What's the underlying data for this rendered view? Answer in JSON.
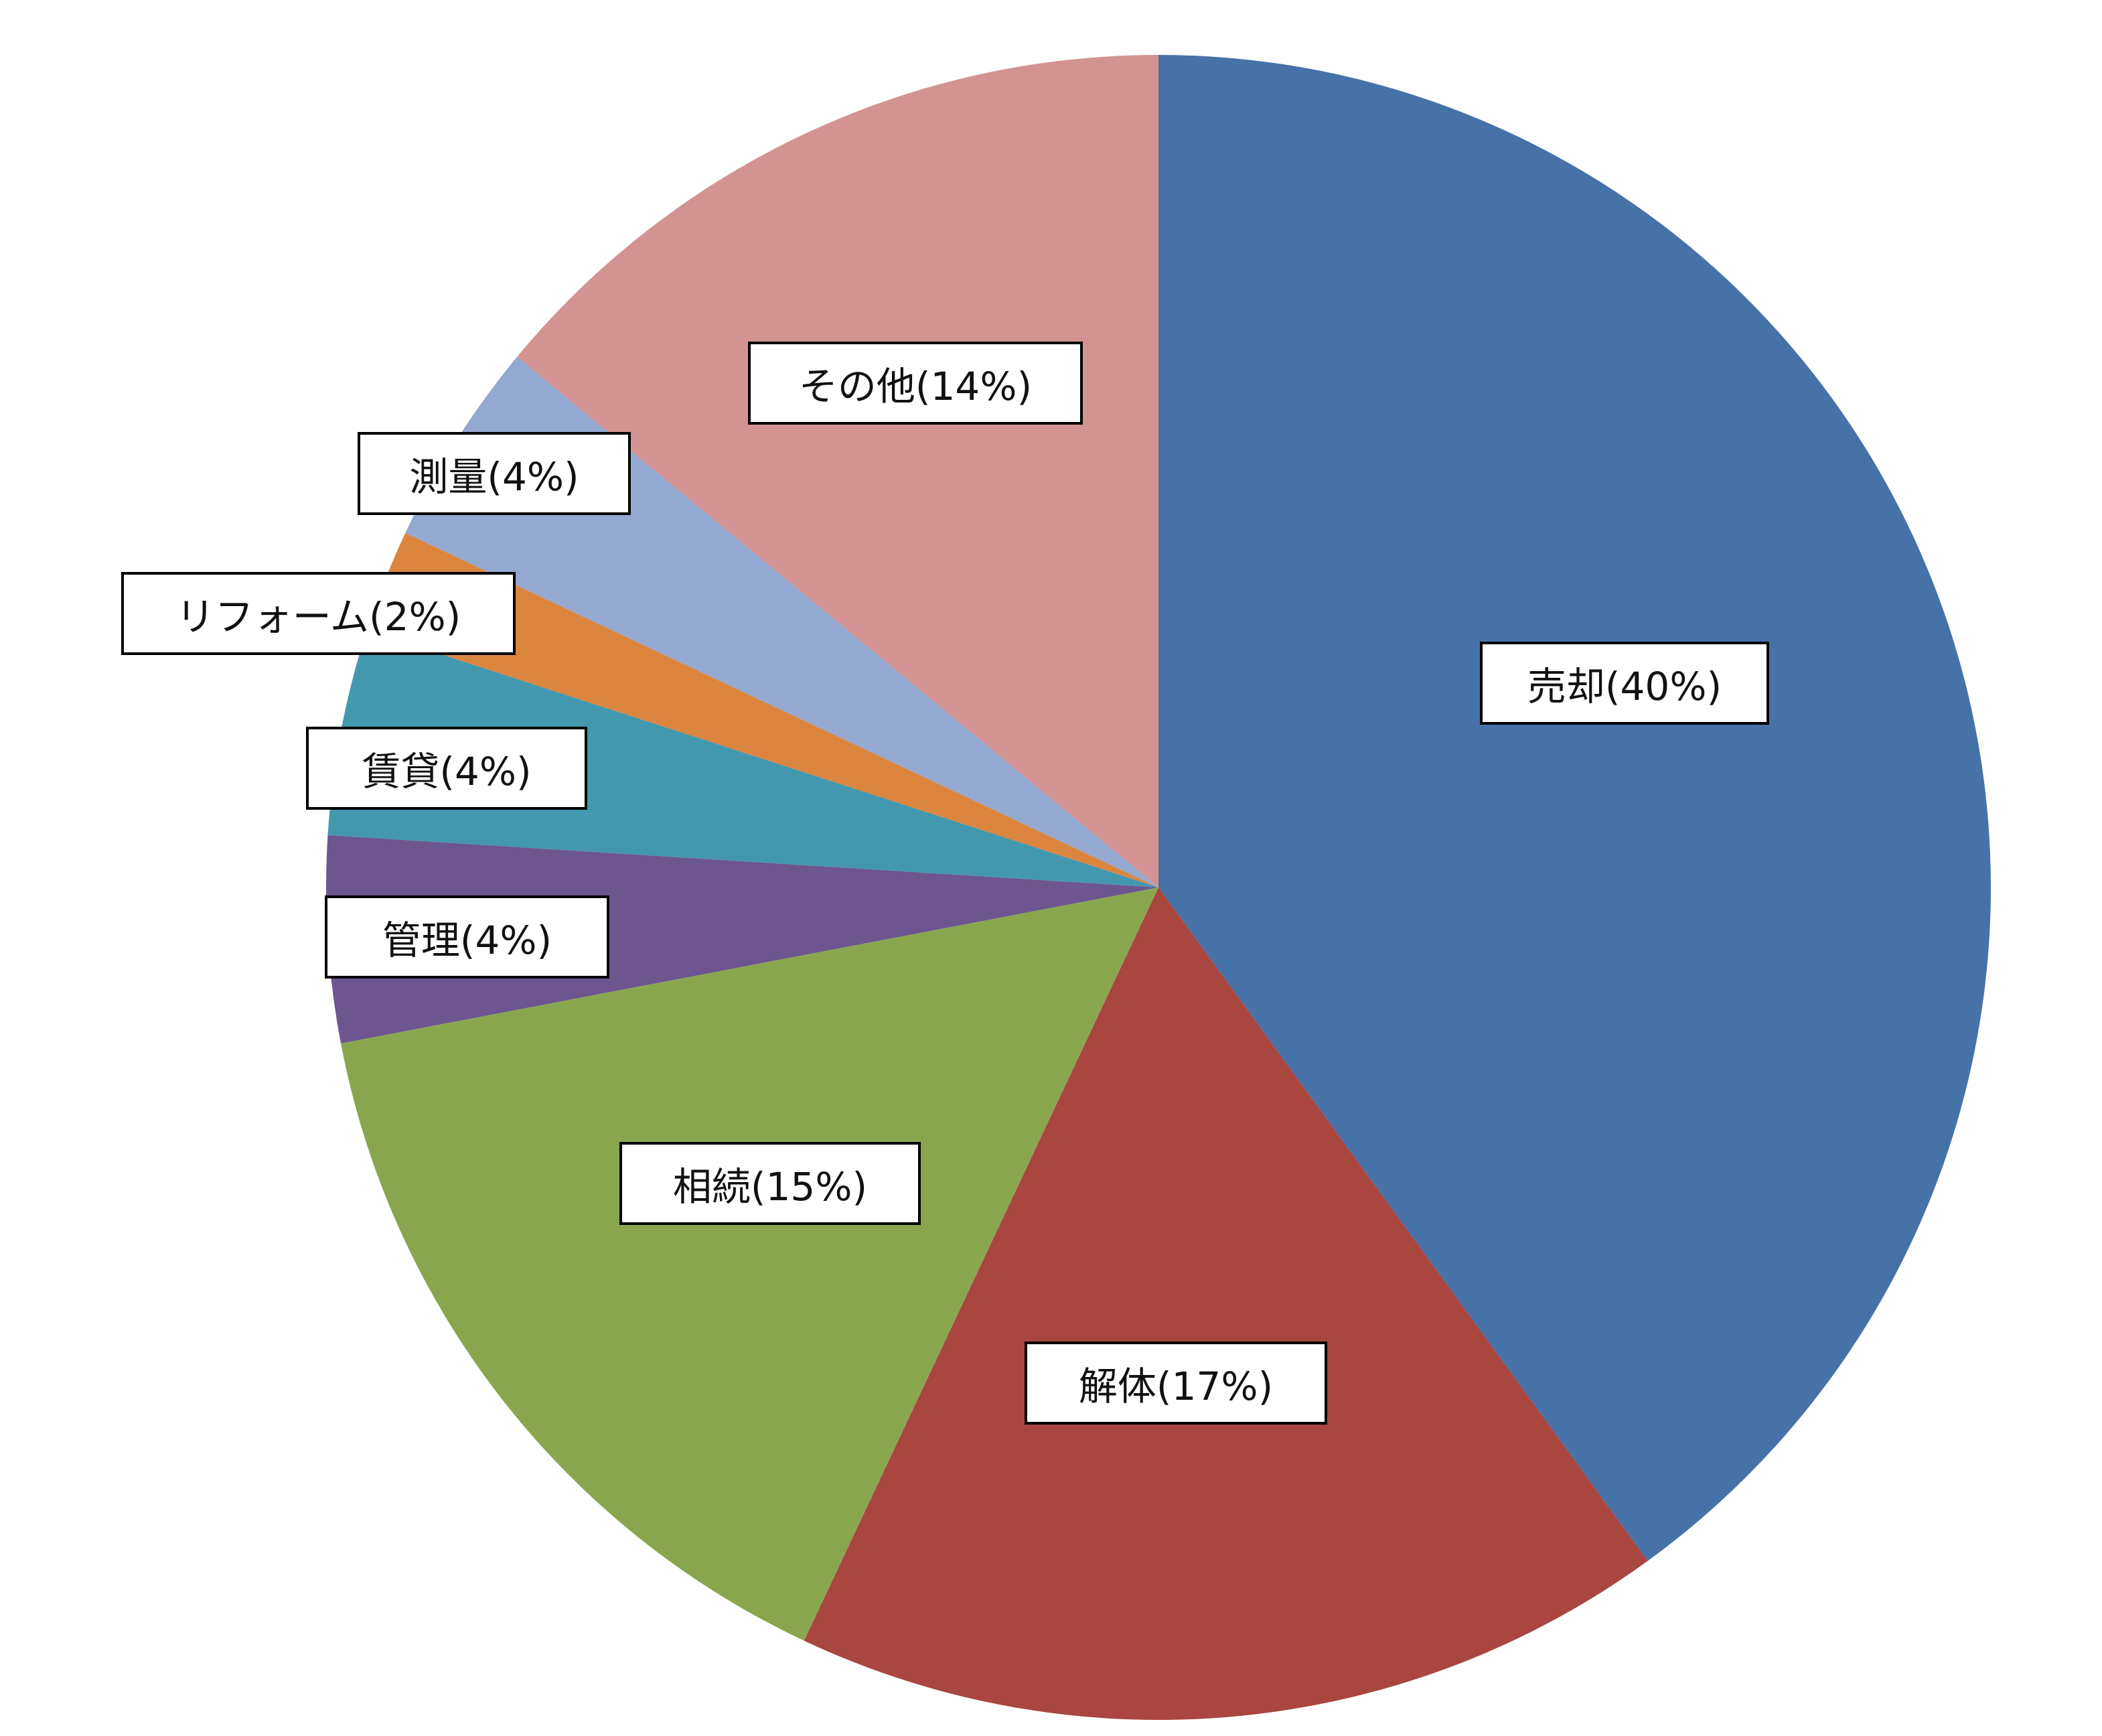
{
  "chart_data": {
    "type": "pie",
    "start": "12 o'clock",
    "direction": "clockwise",
    "categories": [
      "売却",
      "解体",
      "相続",
      "管理",
      "賃貸",
      "リフォーム",
      "測量",
      "その他"
    ],
    "values": [
      40,
      17,
      15,
      4,
      4,
      2,
      4,
      14
    ],
    "unit": "%",
    "labels": [
      "売却(40%)",
      "解体(17%)",
      "相続(15%)",
      "管理(4%)",
      "賃貸(4%)",
      "リフォーム(2%)",
      "測量(4%)",
      "その他(14%)"
    ],
    "colors": [
      "#4672A8",
      "#A8463F",
      "#89A64E",
      "#6D5690",
      "#4398AF",
      "#DC853F",
      "#94A9D1",
      "#D29392"
    ],
    "legend": "none"
  }
}
